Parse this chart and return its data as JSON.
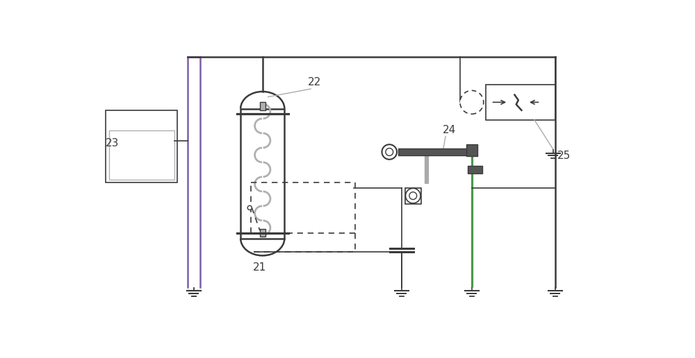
{
  "bg_color": "#ffffff",
  "line_color": "#3a3a3a",
  "dark_gray": "#555555",
  "light_gray": "#aaaaaa",
  "coil_gray": "#b0b0b0",
  "purple_line": "#7b5ea7",
  "green_line": "#4a9a4a"
}
